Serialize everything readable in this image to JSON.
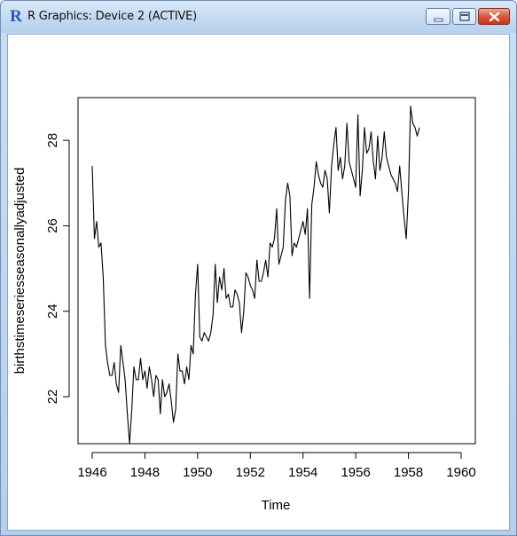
{
  "window": {
    "title": "R Graphics: Device 2 (ACTIVE)",
    "app_icon": "R",
    "buttons": [
      "minimize-icon",
      "maximize-icon",
      "close-icon"
    ]
  },
  "chart_data": {
    "type": "line",
    "title": "",
    "xlabel": "Time",
    "ylabel": "birthstimeseriesseasonallyadjusted",
    "xlim": [
      1946,
      1960
    ],
    "ylim": [
      20.9,
      29.0
    ],
    "x_ticks": [
      1946,
      1948,
      1950,
      1952,
      1954,
      1956,
      1958,
      1960
    ],
    "x_tick_labels": [
      "1946",
      "1948",
      "1950",
      "1952",
      "1954",
      "1956",
      "1958",
      "1960"
    ],
    "y_ticks": [
      22,
      24,
      26,
      28
    ],
    "y_tick_labels": [
      "22",
      "24",
      "26",
      "28"
    ],
    "grid": false,
    "series": [
      {
        "start": 1946.0,
        "frequency": 12,
        "values": [
          27.4,
          25.7,
          26.1,
          25.5,
          25.6,
          24.8,
          23.2,
          22.8,
          22.5,
          22.5,
          22.8,
          22.3,
          22.1,
          23.2,
          22.8,
          22.4,
          21.6,
          20.9,
          21.7,
          22.7,
          22.4,
          22.4,
          22.9,
          22.4,
          22.6,
          22.2,
          22.7,
          22.4,
          22.0,
          22.5,
          22.4,
          21.6,
          22.4,
          22.0,
          22.1,
          22.3,
          21.9,
          21.4,
          21.7,
          23.0,
          22.6,
          22.6,
          22.3,
          22.7,
          22.4,
          23.2,
          23.0,
          24.4,
          25.1,
          23.4,
          23.3,
          23.5,
          23.4,
          23.3,
          23.5,
          23.9,
          25.1,
          24.2,
          24.8,
          24.5,
          25.0,
          24.3,
          24.4,
          24.1,
          24.1,
          24.5,
          24.4,
          24.2,
          23.5,
          24.0,
          24.9,
          24.8,
          24.6,
          24.5,
          24.3,
          25.2,
          24.7,
          24.7,
          24.9,
          25.2,
          24.8,
          25.6,
          25.5,
          25.7,
          26.4,
          25.1,
          25.3,
          25.5,
          26.6,
          27.0,
          26.7,
          25.3,
          25.6,
          25.5,
          25.7,
          25.9,
          26.1,
          25.8,
          26.4,
          24.3,
          26.5,
          26.9,
          27.5,
          27.2,
          27.0,
          26.9,
          27.3,
          27.1,
          26.3,
          27.4,
          27.9,
          28.3,
          27.3,
          27.6,
          27.1,
          27.4,
          28.4,
          27.5,
          27.3,
          27.1,
          26.9,
          28.6,
          26.7,
          27.3,
          28.3,
          27.7,
          27.8,
          28.2,
          27.5,
          27.1,
          28.1,
          27.3,
          27.6,
          28.2,
          27.6,
          27.4,
          27.2,
          27.1,
          27.0,
          26.8,
          27.4,
          26.8,
          26.2,
          25.7,
          26.8,
          28.8,
          28.4,
          28.3,
          28.1,
          28.3
        ]
      }
    ]
  }
}
